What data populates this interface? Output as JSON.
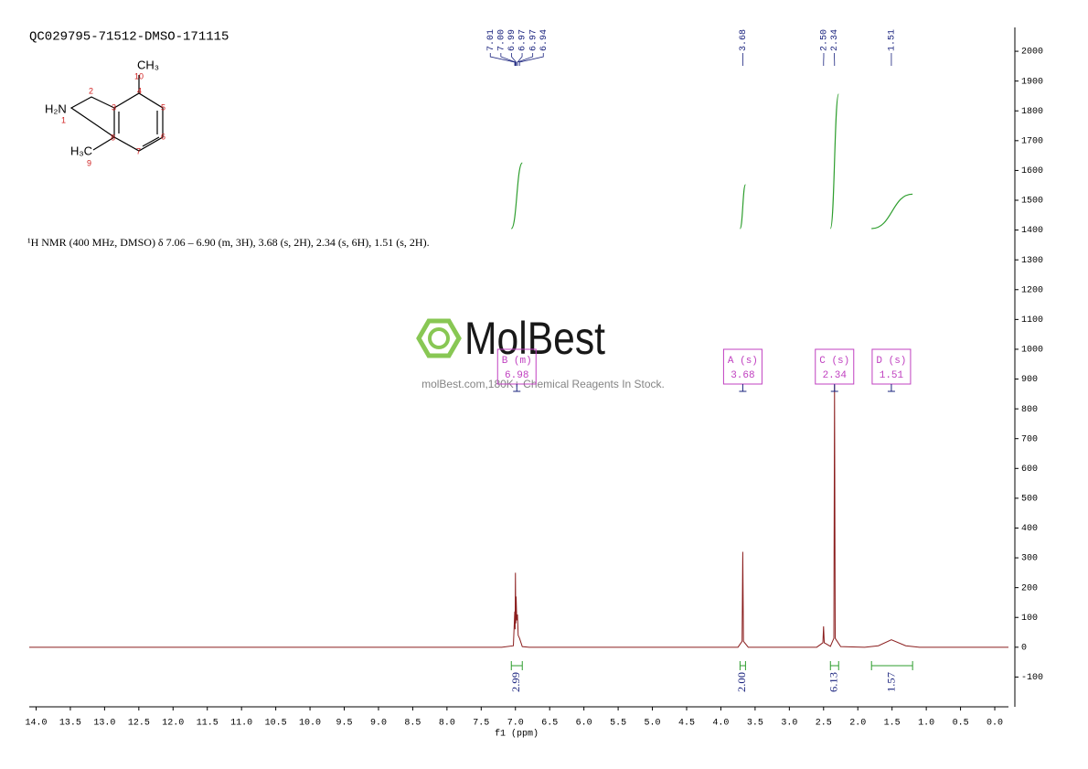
{
  "title": "QC029795-71512-DMSO-171115",
  "structure": {
    "labels": [
      "CH₃",
      "10",
      "4",
      "H₂N",
      "1",
      "2",
      "3",
      "5",
      "8",
      "6",
      "7",
      "H₃C",
      "9"
    ]
  },
  "description": "¹H NMR (400 MHz, DMSO) δ 7.06 – 6.90 (m, 3H), 3.68 (s, 2H), 2.34 (s, 6H), 1.51 (s, 2H).",
  "watermark": {
    "logo": "MolBest",
    "tagline": "molBest.com,180K+ Chemical Reagents In Stock."
  },
  "chart_data": {
    "type": "line",
    "xlabel": "f1 (ppm)",
    "xlim": [
      14.1,
      -0.2
    ],
    "ylim": [
      -200,
      2080
    ],
    "xticks": [
      {
        "value": 14,
        "label": "14.0"
      },
      13.5,
      {
        "value": 13,
        "label": "13.0"
      },
      12.5,
      {
        "value": 12,
        "label": "12.0"
      },
      11.5,
      {
        "value": 11,
        "label": "11.0"
      },
      10.5,
      {
        "value": 10,
        "label": "10.0"
      },
      9.5,
      {
        "value": 9,
        "label": "9.0"
      },
      8.5,
      {
        "value": 8,
        "label": "8.0"
      },
      7.5,
      {
        "value": 7,
        "label": "7.0"
      },
      6.5,
      {
        "value": 6,
        "label": "6.0"
      },
      5.5,
      {
        "value": 5,
        "label": "5.0"
      },
      4.5,
      {
        "value": 4,
        "label": "4.0"
      },
      3.5,
      {
        "value": 3,
        "label": "3.0"
      },
      2.5,
      {
        "value": 2,
        "label": "2.0"
      },
      1.5,
      {
        "value": 1,
        "label": "1.0"
      },
      0.5,
      {
        "value": 0,
        "label": "0.0"
      }
    ],
    "yticks": [
      -100,
      0,
      100,
      200,
      300,
      400,
      500,
      600,
      700,
      800,
      900,
      1000,
      1100,
      1200,
      1300,
      1400,
      1500,
      1600,
      1700,
      1800,
      1900,
      2000
    ],
    "x": [
      14.1,
      7.2,
      7.03,
      7.01,
      7.005,
      7.0,
      6.995,
      6.99,
      6.98,
      6.97,
      6.96,
      6.94,
      6.9,
      6.8,
      3.75,
      3.69,
      3.68,
      3.67,
      3.6,
      2.6,
      2.51,
      2.5,
      2.49,
      2.4,
      2.35,
      2.34,
      2.33,
      2.25,
      1.9,
      1.7,
      1.51,
      1.3,
      1.1,
      -0.2
    ],
    "series": [
      {
        "color": "#8b1e1e",
        "values": [
          0,
          0,
          5,
          120,
          60,
          250,
          80,
          170,
          90,
          110,
          40,
          30,
          2,
          0,
          0,
          20,
          320,
          20,
          0,
          0,
          15,
          70,
          15,
          3,
          30,
          880,
          30,
          2,
          0,
          5,
          25,
          5,
          0,
          0
        ]
      }
    ],
    "peak_labels": [
      7.01,
      {
        "value": 7.0,
        "label": "7.00"
      },
      6.99,
      6.97,
      6.97,
      6.94,
      3.68,
      {
        "value": 2.5,
        "label": "2.50"
      },
      2.34,
      1.51
    ],
    "integrals": [
      {
        "range": [
          7.06,
          6.9
        ],
        "value": 2.99
      },
      {
        "range": [
          3.72,
          3.64
        ],
        "value": {
          "value": 2,
          "label": "2.00"
        }
      },
      {
        "range": [
          2.4,
          2.28
        ],
        "value": 6.13
      },
      {
        "range": [
          1.8,
          1.2
        ],
        "value": 1.57
      }
    ],
    "multiplets": [
      {
        "label": "B (m)",
        "shift": 6.98
      },
      {
        "label": "A (s)",
        "shift": 3.68
      },
      {
        "label": "C (s)",
        "shift": 2.34
      },
      {
        "label": "D (s)",
        "shift": 1.51
      }
    ]
  }
}
